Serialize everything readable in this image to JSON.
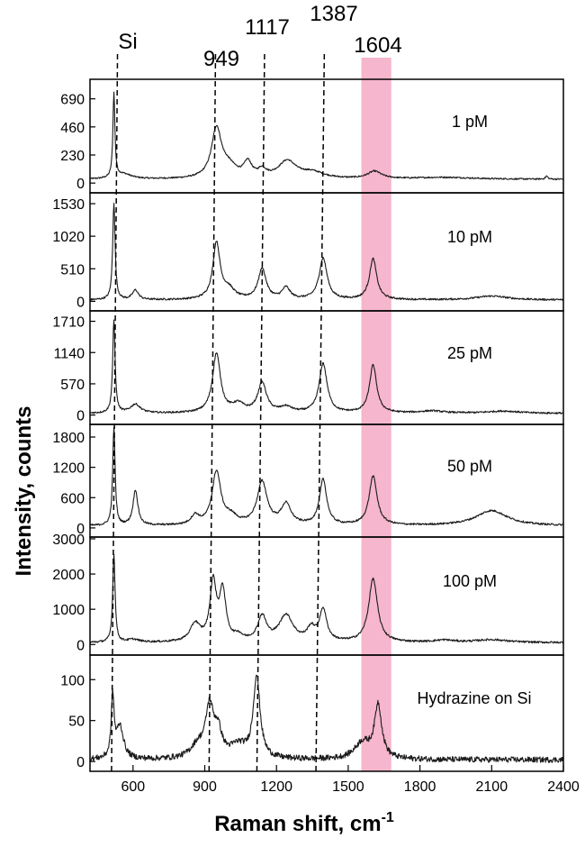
{
  "chart_data": {
    "type": "line",
    "xlabel": "Raman shift, cm",
    "xlabel_sup": "-1",
    "ylabel": "Intensity, counts",
    "xlim": [
      420,
      2400
    ],
    "x_ticks": [
      "600",
      "900",
      "1200",
      "1500",
      "1800",
      "2100",
      "2400"
    ],
    "x_tick_values": [
      600,
      900,
      1200,
      1500,
      1800,
      2100,
      2400
    ],
    "highlight_band": {
      "x_range": [
        1555,
        1680
      ],
      "color": "#f4a9c4"
    },
    "peak_labels": [
      {
        "text": "Si",
        "x": 520
      },
      {
        "text": "949",
        "x": 949
      },
      {
        "text": "1117",
        "x": 1117
      },
      {
        "text": "1387",
        "x": 1387
      },
      {
        "text": "1604",
        "x": 1604
      }
    ],
    "guide_lines": [
      {
        "name": "Si",
        "top_x": 535,
        "bottom_x": 510
      },
      {
        "name": "949",
        "top_x": 945,
        "bottom_x": 918
      },
      {
        "name": "1117",
        "top_x": 1150,
        "bottom_x": 1118
      },
      {
        "name": "1387",
        "top_x": 1400,
        "bottom_x": 1365
      }
    ],
    "panels": [
      {
        "label": "1 pM",
        "ylim": [
          -80,
          850
        ],
        "y_ticks": [
          "0",
          "230",
          "460",
          "690"
        ],
        "y_tick_values": [
          0,
          230,
          460,
          690
        ],
        "baseline": 30,
        "noise": 6,
        "peaks": [
          {
            "x": 520,
            "h": 690,
            "w": 5
          },
          {
            "x": 560,
            "h": 40,
            "w": 40
          },
          {
            "x": 949,
            "h": 400,
            "w": 25
          },
          {
            "x": 1000,
            "h": 90,
            "w": 40
          },
          {
            "x": 1080,
            "h": 120,
            "w": 20
          },
          {
            "x": 1140,
            "h": 60,
            "w": 20
          },
          {
            "x": 1245,
            "h": 140,
            "w": 45
          },
          {
            "x": 1350,
            "h": 50,
            "w": 60
          },
          {
            "x": 1610,
            "h": 60,
            "w": 35
          },
          {
            "x": 1900,
            "h": 15,
            "w": 150
          },
          {
            "x": 2330,
            "h": 25,
            "w": 6
          }
        ]
      },
      {
        "label": "10 pM",
        "ylim": [
          -150,
          1700
        ],
        "y_ticks": [
          "0",
          "510",
          "1020",
          "1530"
        ],
        "y_tick_values": [
          0,
          510,
          1020,
          1530
        ],
        "baseline": 20,
        "noise": 14,
        "peaks": [
          {
            "x": 520,
            "h": 1520,
            "w": 6
          },
          {
            "x": 610,
            "h": 150,
            "w": 15
          },
          {
            "x": 949,
            "h": 880,
            "w": 18
          },
          {
            "x": 1000,
            "h": 150,
            "w": 30
          },
          {
            "x": 1140,
            "h": 480,
            "w": 20
          },
          {
            "x": 1240,
            "h": 180,
            "w": 20
          },
          {
            "x": 1395,
            "h": 650,
            "w": 20
          },
          {
            "x": 1604,
            "h": 640,
            "w": 18
          },
          {
            "x": 2100,
            "h": 60,
            "w": 80
          }
        ]
      },
      {
        "label": "25 pM",
        "ylim": [
          -170,
          1900
        ],
        "y_ticks": [
          "0",
          "570",
          "1140",
          "1710"
        ],
        "y_tick_values": [
          0,
          570,
          1140,
          1710
        ],
        "baseline": 30,
        "noise": 16,
        "peaks": [
          {
            "x": 520,
            "h": 1690,
            "w": 6
          },
          {
            "x": 610,
            "h": 160,
            "w": 25
          },
          {
            "x": 949,
            "h": 1080,
            "w": 20
          },
          {
            "x": 1040,
            "h": 150,
            "w": 30
          },
          {
            "x": 1140,
            "h": 540,
            "w": 22
          },
          {
            "x": 1240,
            "h": 100,
            "w": 30
          },
          {
            "x": 1395,
            "h": 900,
            "w": 20
          },
          {
            "x": 1604,
            "h": 870,
            "w": 18
          },
          {
            "x": 1850,
            "h": 40,
            "w": 60
          },
          {
            "x": 2150,
            "h": 40,
            "w": 80
          }
        ]
      },
      {
        "label": "50 pM",
        "ylim": [
          -180,
          2050
        ],
        "y_ticks": [
          "0",
          "600",
          "1200",
          "1800"
        ],
        "y_tick_values": [
          0,
          600,
          1200,
          1800
        ],
        "baseline": 40,
        "noise": 18,
        "peaks": [
          {
            "x": 520,
            "h": 1950,
            "w": 6
          },
          {
            "x": 610,
            "h": 700,
            "w": 12
          },
          {
            "x": 860,
            "h": 180,
            "w": 20
          },
          {
            "x": 949,
            "h": 1050,
            "w": 22
          },
          {
            "x": 1010,
            "h": 150,
            "w": 30
          },
          {
            "x": 1140,
            "h": 850,
            "w": 25
          },
          {
            "x": 1240,
            "h": 400,
            "w": 25
          },
          {
            "x": 1395,
            "h": 900,
            "w": 18
          },
          {
            "x": 1604,
            "h": 970,
            "w": 20
          },
          {
            "x": 2100,
            "h": 300,
            "w": 80
          }
        ]
      },
      {
        "label": "100 pM",
        "ylim": [
          -300,
          3050
        ],
        "y_ticks": [
          "0",
          "1000",
          "2000",
          "3000"
        ],
        "y_tick_values": [
          0,
          1000,
          2000,
          3000
        ],
        "baseline": 50,
        "noise": 28,
        "peaks": [
          {
            "x": 520,
            "h": 2500,
            "w": 6
          },
          {
            "x": 600,
            "h": 80,
            "w": 30
          },
          {
            "x": 860,
            "h": 500,
            "w": 25
          },
          {
            "x": 935,
            "h": 1650,
            "w": 16
          },
          {
            "x": 975,
            "h": 1400,
            "w": 16
          },
          {
            "x": 1040,
            "h": 150,
            "w": 20
          },
          {
            "x": 1140,
            "h": 700,
            "w": 22
          },
          {
            "x": 1240,
            "h": 750,
            "w": 35
          },
          {
            "x": 1345,
            "h": 350,
            "w": 20
          },
          {
            "x": 1395,
            "h": 900,
            "w": 18
          },
          {
            "x": 1604,
            "h": 1800,
            "w": 22
          },
          {
            "x": 1900,
            "h": 60,
            "w": 50
          },
          {
            "x": 2100,
            "h": 80,
            "w": 80
          }
        ]
      },
      {
        "label": "Hydrazine on Si",
        "ylim": [
          -12,
          130
        ],
        "y_ticks": [
          "0",
          "50",
          "100"
        ],
        "y_tick_values": [
          0,
          50,
          100
        ],
        "baseline": 2,
        "noise": 3.5,
        "peaks": [
          {
            "x": 515,
            "h": 75,
            "w": 7
          },
          {
            "x": 545,
            "h": 40,
            "w": 18
          },
          {
            "x": 870,
            "h": 15,
            "w": 35
          },
          {
            "x": 920,
            "h": 60,
            "w": 20
          },
          {
            "x": 955,
            "h": 30,
            "w": 20
          },
          {
            "x": 1040,
            "h": 15,
            "w": 40
          },
          {
            "x": 1117,
            "h": 100,
            "w": 17
          },
          {
            "x": 1560,
            "h": 20,
            "w": 40
          },
          {
            "x": 1625,
            "h": 65,
            "w": 18
          }
        ]
      }
    ]
  }
}
